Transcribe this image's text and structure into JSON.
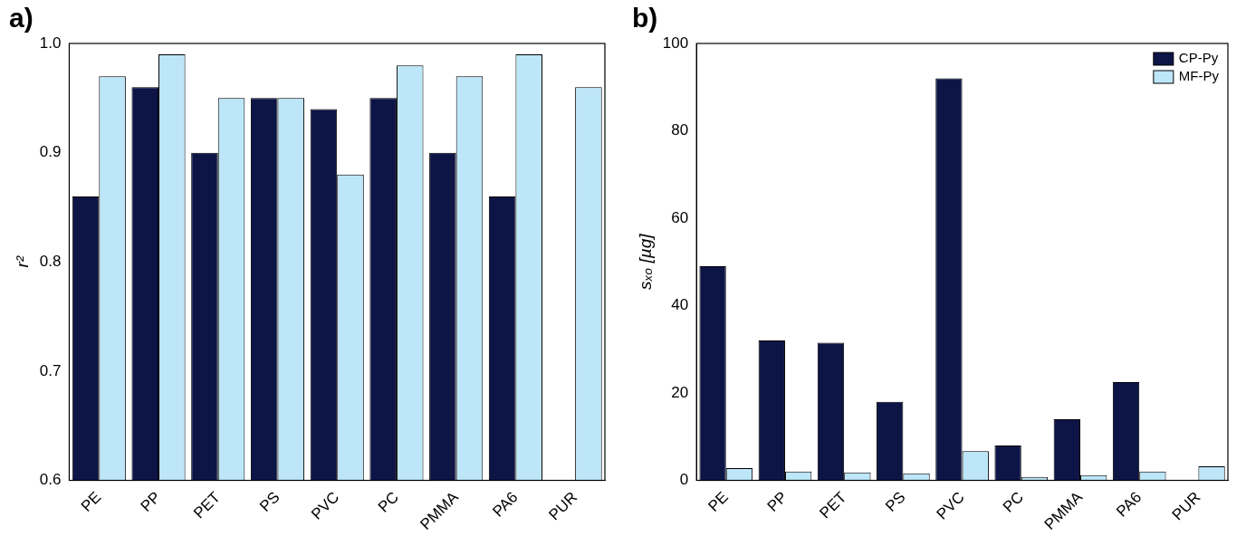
{
  "chart_data": [
    {
      "type": "bar",
      "title": "a)",
      "y_label": "r²",
      "categories": [
        "PE",
        "PP",
        "PET",
        "PS",
        "PVC",
        "PC",
        "PMMA",
        "PA6",
        "PUR"
      ],
      "series": [
        {
          "name": "CP-Py",
          "color": "#0d1547",
          "values": [
            0.86,
            0.96,
            0.9,
            0.95,
            0.94,
            0.95,
            0.9,
            0.86,
            null
          ]
        },
        {
          "name": "MF-Py",
          "color": "#bde6f8",
          "values": [
            0.97,
            0.99,
            0.95,
            0.95,
            0.88,
            0.98,
            0.97,
            0.99,
            0.96
          ]
        }
      ],
      "ylim": [
        0.6,
        1.0
      ],
      "yticks": [
        0.6,
        0.7,
        0.8,
        0.9,
        {
          "value": 1.0,
          "label": "1.0"
        }
      ],
      "grid": false
    },
    {
      "type": "bar",
      "title": "b)",
      "y_label": "sₓₒ [µg]",
      "categories": [
        "PE",
        "PP",
        "PET",
        "PS",
        "PVC",
        "PC",
        "PMMA",
        "PA6",
        "PUR"
      ],
      "series": [
        {
          "name": "CP-Py",
          "color": "#0d1547",
          "values": [
            49,
            32,
            31.5,
            18,
            92,
            8,
            14,
            22.5,
            null
          ]
        },
        {
          "name": "MF-Py",
          "color": "#bde6f8",
          "values": [
            2.8,
            2,
            1.8,
            1.6,
            6.7,
            0.8,
            1.2,
            2,
            3.2
          ]
        }
      ],
      "ylim": [
        0,
        100
      ],
      "yticks": [
        0,
        20,
        40,
        60,
        80,
        100
      ],
      "grid": false,
      "legend": "top-right"
    }
  ]
}
